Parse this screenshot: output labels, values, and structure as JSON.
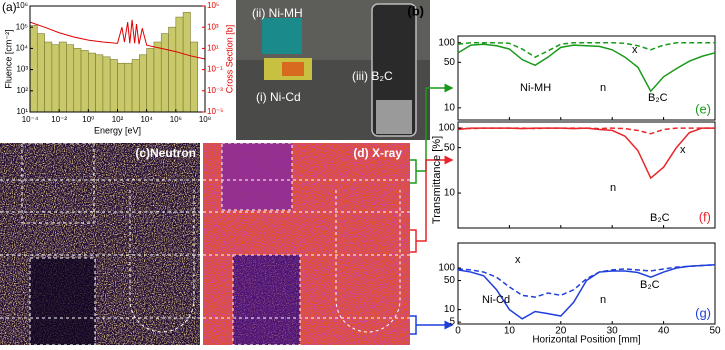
{
  "chart_data": [
    {
      "type": "histogram",
      "title": "(a)",
      "x_label": "Energy [eV]",
      "y_label": "Fluence [cm⁻²]",
      "y2_label": "Cross Section [b]",
      "log_x": true,
      "log_y": true,
      "color": "#c9c96b",
      "bins": [
        0.0001,
        0.000316,
        0.001,
        0.00316,
        0.01,
        0.0316,
        0.1,
        0.316,
        1,
        3.16,
        10,
        31.6,
        100,
        316,
        1000,
        3160,
        10000,
        31600,
        100000,
        316000,
        1000000,
        3160000,
        10000000,
        31600000,
        100000000
      ],
      "values": [
        120000,
        50000,
        20000,
        15000,
        20000,
        15000,
        10000,
        8000,
        6000,
        5000,
        4000,
        3000,
        2000,
        2000,
        3000,
        5000,
        10000,
        20000,
        50000,
        100000,
        300000,
        500000,
        20000,
        10
      ],
      "xlim": [
        0.0001,
        100000000
      ],
      "ylim": [
        10,
        1000000
      ],
      "y2lim": [
        1e-05,
        100000
      ],
      "xticks": [
        {
          "value": 0.0001,
          "label": "10⁻⁴"
        },
        {
          "value": 0.01,
          "label": "10⁻²"
        },
        {
          "value": 1,
          "label": "10⁰"
        },
        {
          "value": 100,
          "label": "10²"
        },
        {
          "value": 10000,
          "label": "10⁴"
        },
        {
          "value": 1000000,
          "label": "10⁶"
        },
        {
          "value": 100000000,
          "label": "10⁸"
        }
      ],
      "yticks": [
        {
          "value": 10,
          "label": "10¹"
        },
        {
          "value": 100,
          "label": "10²"
        },
        {
          "value": 1000,
          "label": "10³"
        },
        {
          "value": 10000,
          "label": "10⁴"
        },
        {
          "value": 100000,
          "label": "10⁵"
        },
        {
          "value": 1000000,
          "label": "10⁶"
        }
      ],
      "y2ticks": [
        {
          "value": 1e-05,
          "label": "10⁻⁵"
        },
        {
          "value": 0.001,
          "label": "10⁻³"
        },
        {
          "value": 0.1,
          "label": "10⁻¹"
        },
        {
          "value": 10,
          "label": "10¹"
        },
        {
          "value": 1000,
          "label": "10³"
        },
        {
          "value": 100000,
          "label": "10⁵"
        }
      ],
      "series": [
        {
          "color": "#e00000",
          "axis": "y2",
          "x": [
            0.0001,
            0.001,
            0.01,
            0.1,
            1,
            10,
            100,
            200,
            300,
            500,
            700,
            1000,
            1500,
            2000,
            3000,
            5000,
            10000,
            100000,
            1000000,
            10000000,
            100000000
          ],
          "values": [
            3000,
            1000,
            300,
            120,
            60,
            40,
            30,
            1000,
            40,
            3000,
            30,
            5000,
            30,
            2000,
            25,
            800,
            20,
            10,
            5,
            2,
            1
          ]
        }
      ]
    },
    {
      "type": "line",
      "title": "(e)",
      "log_y": true,
      "color": "#1a9a1a",
      "xlim": [
        0,
        50
      ],
      "ylim": [
        6.5,
        127
      ],
      "xticks": [
        0,
        10,
        20,
        30,
        40,
        50
      ],
      "yticks": [
        10,
        50,
        100
      ],
      "x": [
        0,
        2.5,
        5,
        7.5,
        10,
        12.5,
        15,
        17.5,
        20,
        22.5,
        25,
        27.5,
        30,
        32.5,
        35,
        37.5,
        40,
        42.5,
        45,
        47.5,
        50
      ],
      "series": [
        {
          "name": "n",
          "color": "#1a9a1a",
          "dash": false,
          "values": [
            70,
            92,
            95,
            90,
            80,
            55,
            45,
            60,
            85,
            92,
            90,
            88,
            78,
            60,
            42,
            18,
            30,
            40,
            52,
            62,
            70
          ]
        },
        {
          "name": "x",
          "color": "#1a9a1a",
          "dash": true,
          "values": [
            95,
            100,
            100,
            100,
            98,
            80,
            60,
            75,
            95,
            100,
            100,
            100,
            100,
            98,
            90,
            78,
            92,
            100,
            100,
            100,
            100
          ]
        }
      ],
      "annotations": [
        "Ni-MH",
        "B₂C"
      ]
    },
    {
      "type": "line",
      "title": "(f)",
      "log_y": true,
      "color": "#e8262a",
      "xlim": [
        0,
        50
      ],
      "ylim": [
        2.9,
        124
      ],
      "xticks": [
        0,
        10,
        20,
        30,
        40,
        50
      ],
      "yticks": [
        10,
        50,
        100
      ],
      "x": [
        0,
        2.5,
        5,
        7.5,
        10,
        12.5,
        15,
        17.5,
        20,
        22.5,
        25,
        27.5,
        30,
        32.5,
        35,
        37.5,
        40,
        42.5,
        45,
        47.5,
        50
      ],
      "series": [
        {
          "name": "n",
          "color": "#e8262a",
          "dash": false,
          "values": [
            95,
            100,
            100,
            100,
            100,
            98,
            100,
            100,
            100,
            98,
            100,
            95,
            92,
            75,
            45,
            17,
            25,
            50,
            85,
            100,
            100
          ]
        },
        {
          "name": "x",
          "color": "#e8262a",
          "dash": true,
          "values": [
            100,
            98,
            100,
            100,
            100,
            100,
            98,
            100,
            100,
            100,
            100,
            98,
            100,
            98,
            92,
            82,
            95,
            100,
            100,
            100,
            100
          ]
        }
      ],
      "annotations": [
        "B₂C"
      ]
    },
    {
      "type": "line",
      "title": "(g)",
      "log_y": true,
      "color": "#1f3fdc",
      "x_label": "Horizontal Position [mm]",
      "xlim": [
        0,
        50
      ],
      "ylim": [
        4.5,
        400
      ],
      "xticks": [
        0,
        10,
        20,
        30,
        40,
        50
      ],
      "yticks": [
        5,
        10,
        50,
        100
      ],
      "x": [
        0,
        2.5,
        5,
        7.5,
        10,
        12.5,
        15,
        17.5,
        20,
        22.5,
        25,
        27.5,
        30,
        32.5,
        35,
        37.5,
        40,
        42.5,
        45,
        47.5,
        50
      ],
      "series": [
        {
          "name": "n",
          "color": "#1f3fdc",
          "dash": false,
          "values": [
            90,
            80,
            65,
            30,
            10,
            6,
            9,
            8,
            7,
            15,
            50,
            80,
            85,
            85,
            78,
            60,
            80,
            100,
            110,
            115,
            120
          ]
        },
        {
          "name": "x",
          "color": "#1f3fdc",
          "dash": true,
          "values": [
            95,
            90,
            80,
            60,
            35,
            22,
            20,
            25,
            22,
            30,
            55,
            80,
            90,
            95,
            90,
            85,
            95,
            105,
            110,
            115,
            120
          ]
        }
      ],
      "annotations": [
        "Ni-Cd",
        "B₂C"
      ]
    }
  ],
  "shared_y_label": "Transmittance [%]",
  "photo": {
    "title": "(b)",
    "labels": [
      "(ii) Ni-MH",
      "(iii) B₂C",
      "(i) Ni-Cd"
    ]
  },
  "images": [
    {
      "title": "(c)Neutron"
    },
    {
      "title": "(d) X-ray"
    }
  ]
}
